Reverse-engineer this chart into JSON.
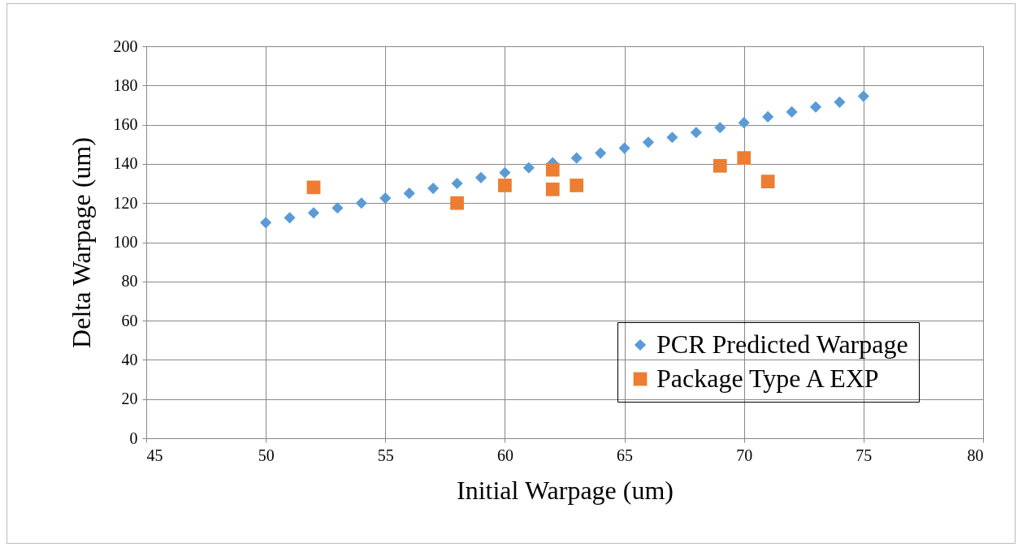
{
  "chart_data": {
    "type": "scatter",
    "xlabel": "Initial Warpage (um)",
    "ylabel": "Delta Warpage (um)",
    "xlim": [
      45,
      80
    ],
    "xticks": [
      45,
      50,
      55,
      60,
      65,
      70,
      75,
      80
    ],
    "ylim": [
      0,
      200
    ],
    "yticks": [
      0,
      20,
      40,
      60,
      80,
      100,
      120,
      140,
      160,
      180,
      200
    ],
    "grid": true,
    "legend": "bottom right",
    "series": [
      {
        "name": "PCR Predicted Warpage",
        "color": "#5b9bd5",
        "marker": "diamond",
        "x": [
          50,
          51,
          52,
          53,
          54,
          55,
          56,
          57,
          58,
          59,
          60,
          61,
          62,
          63,
          64,
          65,
          66,
          67,
          68,
          69,
          70,
          71,
          72,
          73,
          74,
          75
        ],
        "values": [
          110,
          112.5,
          115,
          117.5,
          120,
          122.5,
          125,
          127.5,
          130,
          133,
          135.5,
          138,
          140.5,
          143,
          145.5,
          148,
          151,
          153.5,
          156,
          158.5,
          161,
          164,
          166.5,
          169,
          171.5,
          174.5
        ]
      },
      {
        "name": "Package Type A EXP",
        "color": "#ed7d31",
        "marker": "square",
        "x": [
          52,
          58,
          60,
          62,
          62,
          63,
          69,
          70,
          71
        ],
        "values": [
          128,
          120,
          129,
          137,
          127,
          129,
          139,
          143,
          131
        ]
      }
    ]
  }
}
